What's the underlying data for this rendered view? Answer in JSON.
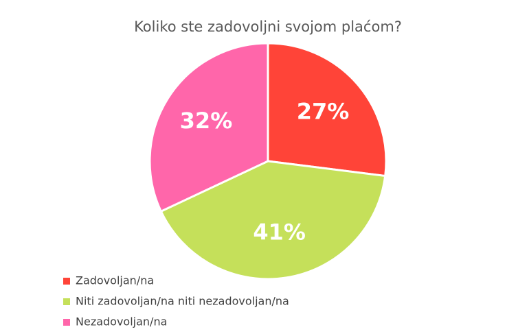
{
  "chart_data": {
    "type": "pie",
    "title": "Koliko ste zadovoljni svojom plaćom?",
    "categories": [
      "Zadovoljan/na",
      "Niti zadovoljan/na niti nezadovoljan/na",
      "Nezadovoljan/na"
    ],
    "values": [
      27,
      41,
      32
    ],
    "value_labels": [
      "27%",
      "41%",
      "32%"
    ],
    "colors": [
      "#ff4438",
      "#c5e05a",
      "#ff66aa"
    ],
    "legend": "bottom-left"
  }
}
